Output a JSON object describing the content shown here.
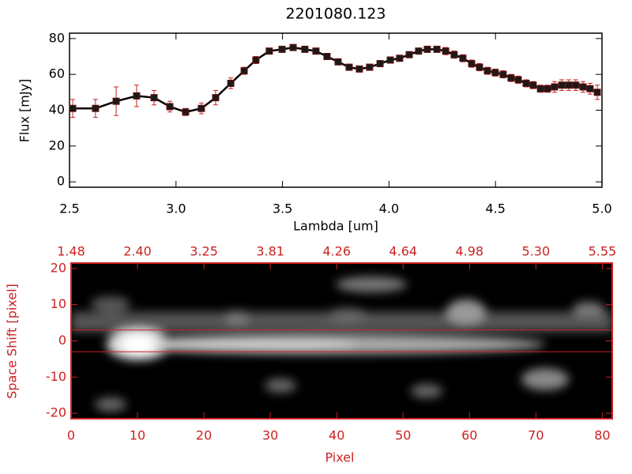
{
  "chart_data": [
    {
      "type": "line",
      "title": "2201080.123",
      "xlabel": "Lambda [um]",
      "ylabel": "Flux [mJy]",
      "x": [
        2.515,
        2.622,
        2.719,
        2.815,
        2.897,
        2.971,
        3.045,
        3.119,
        3.186,
        3.257,
        3.32,
        3.375,
        3.438,
        3.498,
        3.55,
        3.605,
        3.657,
        3.709,
        3.761,
        3.813,
        3.861,
        3.909,
        3.958,
        4.006,
        4.05,
        4.095,
        4.139,
        4.18,
        4.225,
        4.266,
        4.306,
        4.347,
        4.388,
        4.425,
        4.462,
        4.499,
        4.536,
        4.573,
        4.607,
        4.644,
        4.677,
        4.711,
        4.744,
        4.777,
        4.811,
        4.844,
        4.877,
        4.911,
        4.944,
        4.978
      ],
      "series": [
        {
          "color": "#000000",
          "error_color": "#cc2222",
          "values": [
            41,
            41,
            45,
            48,
            47,
            42,
            39,
            41,
            47,
            55,
            62,
            68,
            73,
            74,
            75,
            74,
            73,
            70,
            67,
            64,
            63,
            64,
            66,
            68,
            69,
            71,
            73,
            74,
            74,
            73,
            71,
            69,
            66,
            64,
            62,
            61,
            60,
            58,
            57,
            55,
            54,
            52,
            52,
            53,
            54,
            54,
            54,
            53,
            52,
            50
          ],
          "errors": [
            5,
            5,
            8,
            6,
            4,
            3,
            2,
            3,
            4,
            3,
            2,
            2,
            1,
            1,
            1,
            1,
            1,
            1,
            1,
            1,
            1,
            1,
            1,
            1,
            1,
            1,
            1,
            1,
            1,
            2,
            2,
            2,
            2,
            2,
            2,
            2,
            2,
            2,
            2,
            2,
            2,
            2,
            2,
            3,
            3,
            3,
            3,
            3,
            3,
            4
          ]
        }
      ],
      "xlim": [
        2.5,
        5.0
      ],
      "ylim": [
        -3,
        83
      ],
      "xticks": [
        2.5,
        {
          "value": 3.0,
          "label": "3.0"
        },
        3.5,
        {
          "value": 4.0,
          "label": "4.0"
        },
        4.5,
        {
          "value": 5.0,
          "label": "5.0"
        }
      ],
      "yticks": [
        0,
        20,
        40,
        60,
        80
      ]
    },
    {
      "type": "image",
      "xlabel": "Pixel",
      "ylabel": "Space Shift [pixel]",
      "color": "#cc2222",
      "xlim": [
        0,
        81.5
      ],
      "ylim": [
        -21.5,
        21.5
      ],
      "xticks": [
        0,
        10,
        20,
        30,
        40,
        50,
        60,
        70,
        80
      ],
      "yticks": [
        -20,
        -10,
        0,
        10,
        20
      ],
      "x2ticks": [
        {
          "value": 0,
          "label": "1.48"
        },
        {
          "value": 10,
          "label": "2.40"
        },
        {
          "value": 20,
          "label": "3.25"
        },
        {
          "value": 30,
          "label": "3.81"
        },
        {
          "value": 40,
          "label": "4.26"
        },
        {
          "value": 50,
          "label": "4.64"
        },
        {
          "value": 60,
          "label": "4.98"
        },
        {
          "value": 70,
          "label": "5.30"
        },
        {
          "value": 80,
          "label": "5.55"
        }
      ],
      "hlines": [
        3,
        -3
      ]
    }
  ]
}
